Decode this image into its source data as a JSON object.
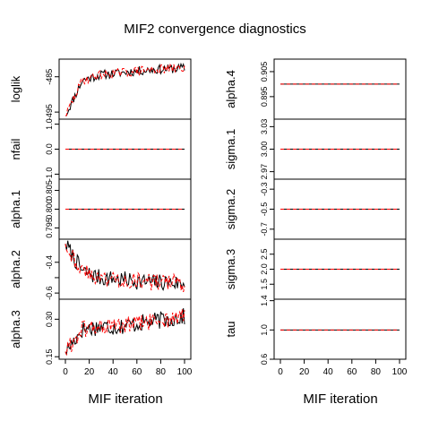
{
  "chart_data": {
    "type": "line",
    "title": "MIF2 convergence diagnostics",
    "xlabel": "MIF iteration",
    "xlim": [
      0,
      100
    ],
    "xticks": [
      0,
      20,
      40,
      60,
      80,
      100
    ],
    "line_colors": [
      "#000000",
      "#ff0000"
    ],
    "panels": [
      {
        "column": 0,
        "row": 0,
        "ylabel": "loglik",
        "ylim": [
          -497,
          -480
        ],
        "ytick_values": [
          -495,
          -485
        ],
        "ytick_labels": [
          "-495",
          "-485"
        ],
        "trend": [
          -496,
          -486,
          -484.5,
          -484,
          -483.5,
          -483,
          -482.8,
          -482.5
        ],
        "noise": 1.3,
        "seeds": [
          11,
          29
        ]
      },
      {
        "column": 0,
        "row": 1,
        "ylabel": "nfail",
        "ylim": [
          -1.2,
          1.2
        ],
        "ytick_values": [
          -1.0,
          0.0,
          1.0
        ],
        "ytick_labels": [
          "-1.0",
          "0.0",
          "1.0"
        ],
        "constant": 0
      },
      {
        "column": 0,
        "row": 2,
        "ylabel": "alpha.1",
        "ylim": [
          0.792,
          0.808
        ],
        "ytick_values": [
          0.795,
          0.8,
          0.805
        ],
        "ytick_labels": [
          "0.795",
          "0.800",
          "0.805"
        ],
        "constant": 0.8
      },
      {
        "column": 0,
        "row": 3,
        "ylabel": "alpha.2",
        "ylim": [
          -0.64,
          -0.25
        ],
        "ytick_values": [
          -0.6,
          -0.5,
          -0.4
        ],
        "ytick_labels": [
          "-0.6",
          "",
          "-0.4"
        ],
        "trend": [
          -0.28,
          -0.46,
          -0.5,
          -0.51,
          -0.52,
          -0.53,
          -0.53,
          -0.54
        ],
        "noise": 0.055,
        "seeds": [
          7,
          43
        ]
      },
      {
        "column": 0,
        "row": 4,
        "ylabel": "alpha.3",
        "ylim": [
          0.14,
          0.38
        ],
        "ytick_values": [
          0.15,
          0.3
        ],
        "ytick_labels": [
          "0.15",
          "0.30"
        ],
        "trend": [
          0.17,
          0.26,
          0.27,
          0.27,
          0.28,
          0.29,
          0.3,
          0.31
        ],
        "noise": 0.035,
        "seeds": [
          17,
          61
        ]
      },
      {
        "column": 1,
        "row": 0,
        "ylabel": "alpha.4",
        "ylim": [
          0.886,
          0.91
        ],
        "ytick_values": [
          0.895,
          0.905
        ],
        "ytick_labels": [
          "0.895",
          "0.905"
        ],
        "constant": 0.9
      },
      {
        "column": 1,
        "row": 1,
        "ylabel": "sigma.1",
        "ylim": [
          2.96,
          3.04
        ],
        "ytick_values": [
          2.97,
          3.0,
          3.03
        ],
        "ytick_labels": [
          "2.97",
          "3.00",
          "3.03"
        ],
        "constant": 3.0
      },
      {
        "column": 1,
        "row": 2,
        "ylabel": "sigma.2",
        "ylim": [
          -0.8,
          -0.2
        ],
        "ytick_values": [
          -0.7,
          -0.5,
          -0.3
        ],
        "ytick_labels": [
          "-0.7",
          "-0.5",
          "-0.3"
        ],
        "constant": -0.5
      },
      {
        "column": 1,
        "row": 3,
        "ylabel": "sigma.3",
        "ylim": [
          1.0,
          3.0
        ],
        "ytick_values": [
          1.5,
          2.0,
          2.5
        ],
        "ytick_labels": [
          "1.5",
          "2.0",
          "2.5"
        ],
        "constant": 2.0
      },
      {
        "column": 1,
        "row": 4,
        "ylabel": "tau",
        "ylim": [
          0.6,
          1.42
        ],
        "ytick_values": [
          0.6,
          1.0,
          1.4
        ],
        "ytick_labels": [
          "0.6",
          "1.0",
          "1.4"
        ],
        "constant": 1.0
      }
    ]
  }
}
